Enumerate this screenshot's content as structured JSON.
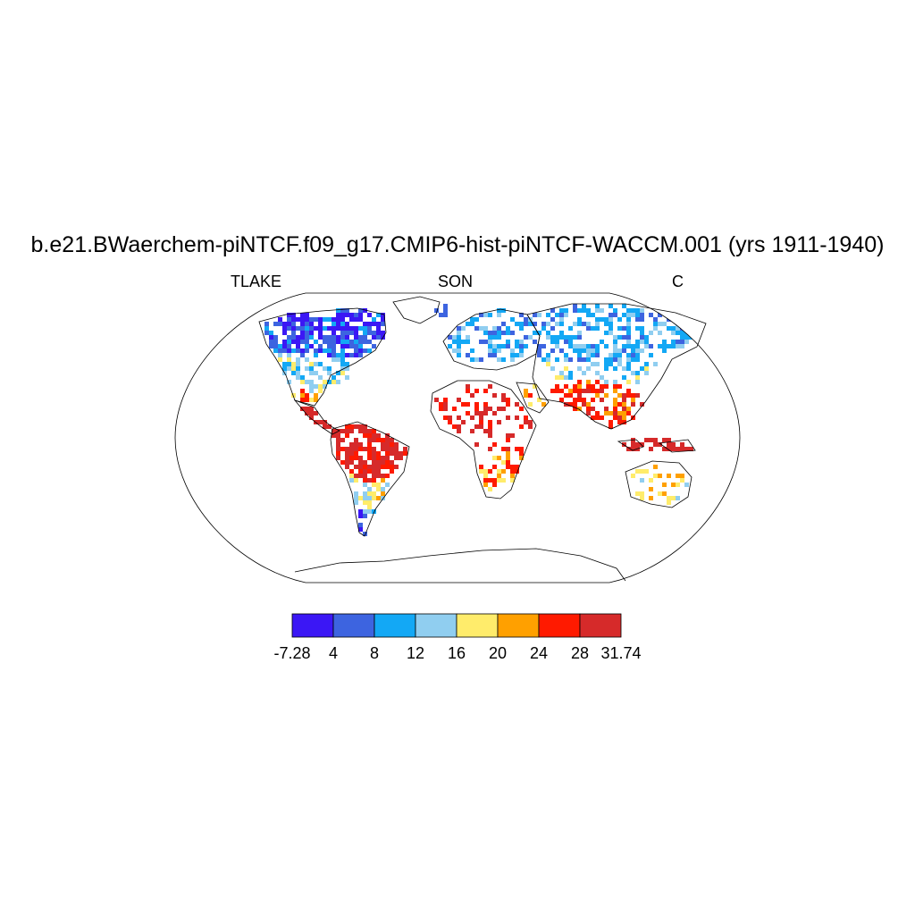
{
  "title": "b.e21.BWaerchem-piNTCF.f09_g17.CMIP6-hist-piNTCF-WACCM.001 (yrs 1911-1940)",
  "labels": {
    "variable": "TLAKE",
    "season": "SON",
    "units": "C"
  },
  "map": {
    "projection": "Robinson",
    "field": "lake temperature at land grid points"
  },
  "colorbar": {
    "colors": [
      "#3b17f5",
      "#3d64e0",
      "#13a8f5",
      "#90cef0",
      "#ffec6b",
      "#ffa000",
      "#ff1a00",
      "#d62a2a"
    ],
    "labels": [
      "-7.28",
      "4",
      "8",
      "12",
      "16",
      "20",
      "24",
      "28",
      "31.74"
    ],
    "bounds": [
      -7.28,
      4,
      8,
      12,
      16,
      20,
      24,
      28,
      31.74
    ]
  }
}
